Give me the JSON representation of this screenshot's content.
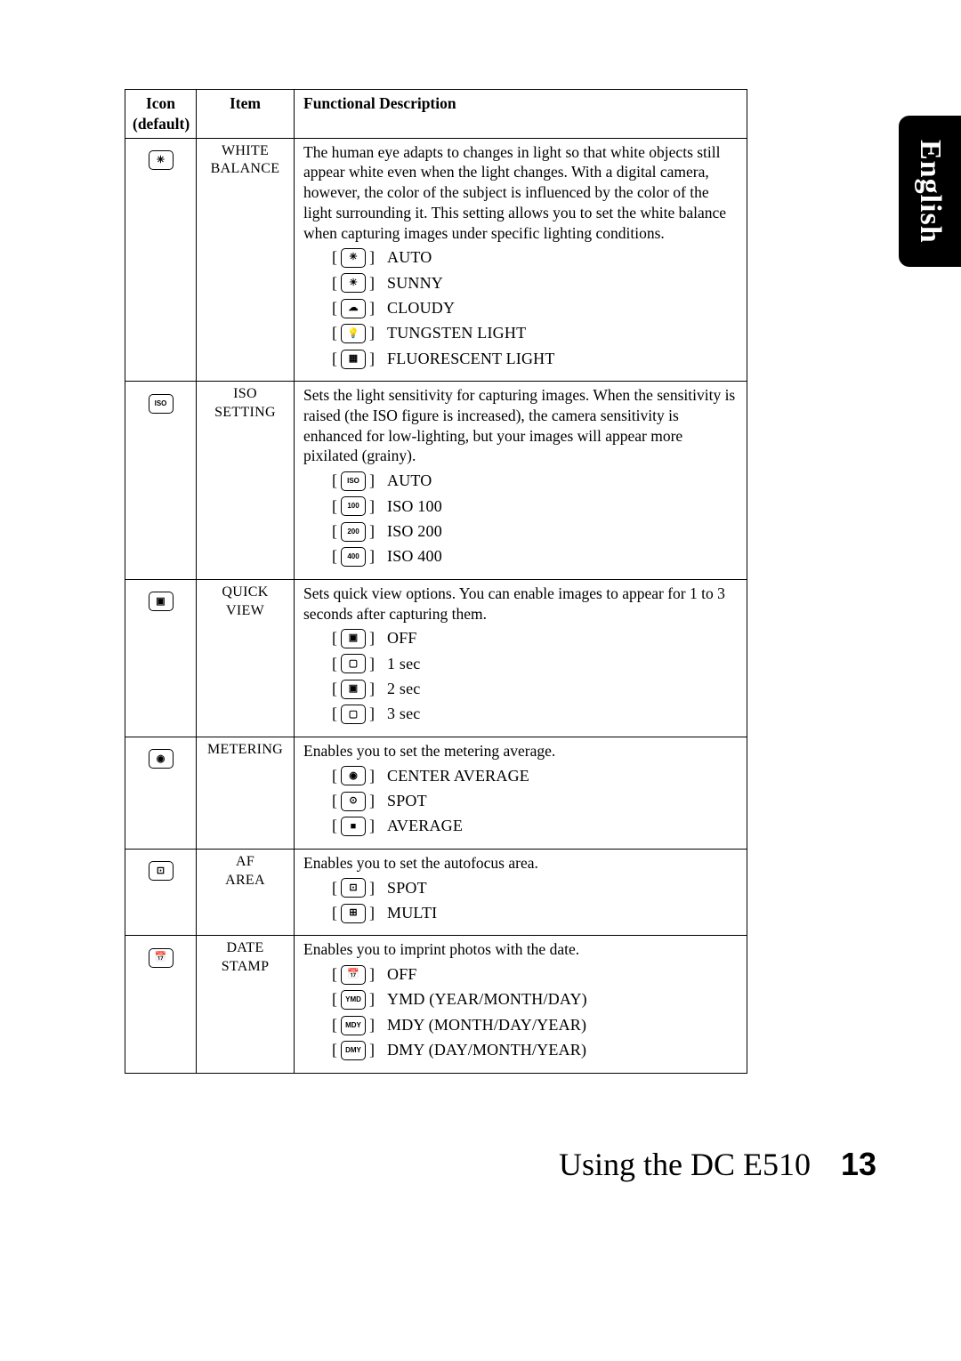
{
  "side_tab": {
    "label": "English"
  },
  "table": {
    "headers": {
      "icon": "Icon\n(default)",
      "item": "Item",
      "desc": "Functional Description"
    },
    "rows": [
      {
        "icon_glyph": "✳",
        "item": "WHITE BALANCE",
        "desc": "The human eye adapts to changes in light so that white objects still appear white even when the light changes. With a digital camera, however, the color of the subject is influenced by the color of the light surrounding it. This setting allows you to set the white balance when capturing images under specific lighting conditions.",
        "options": [
          {
            "glyph": "✳",
            "label": "AUTO"
          },
          {
            "glyph": "☀",
            "label": "SUNNY"
          },
          {
            "glyph": "☁",
            "label": "CLOUDY"
          },
          {
            "glyph": "💡",
            "label": "TUNGSTEN LIGHT"
          },
          {
            "glyph": "▦",
            "label": "FLUORESCENT LIGHT"
          }
        ]
      },
      {
        "icon_glyph": "ISO",
        "item": "ISO SETTING",
        "desc": "Sets the light sensitivity for capturing images. When the sensitivity is raised (the ISO figure is increased), the camera sensitivity is enhanced for low-lighting, but your images will appear more pixilated (grainy).",
        "options": [
          {
            "glyph": "ISO",
            "label": "AUTO"
          },
          {
            "glyph": "100",
            "label": "ISO 100"
          },
          {
            "glyph": "200",
            "label": "ISO 200"
          },
          {
            "glyph": "400",
            "label": "ISO 400"
          }
        ]
      },
      {
        "icon_glyph": "▣",
        "item": "QUICK VIEW",
        "desc": "Sets quick view options. You can enable images to appear for 1 to 3 seconds after capturing them.",
        "options": [
          {
            "glyph": "▣",
            "label": "OFF"
          },
          {
            "glyph": "▢",
            "label": "1 sec"
          },
          {
            "glyph": "▣",
            "label": "2 sec"
          },
          {
            "glyph": "▢",
            "label": "3 sec"
          }
        ]
      },
      {
        "icon_glyph": "◉",
        "item": "METERING",
        "desc": "Enables you to set the metering average.",
        "options": [
          {
            "glyph": "◉",
            "label": "CENTER AVERAGE"
          },
          {
            "glyph": "⊙",
            "label": "SPOT"
          },
          {
            "glyph": "■",
            "label": "AVERAGE"
          }
        ]
      },
      {
        "icon_glyph": "⊡",
        "item": "AF AREA",
        "desc": "Enables you to set the autofocus area.",
        "options": [
          {
            "glyph": "⊡",
            "label": "SPOT"
          },
          {
            "glyph": "⊞",
            "label": "MULTI"
          }
        ]
      },
      {
        "icon_glyph": "📅",
        "item": "DATE STAMP",
        "desc": "Enables you to imprint photos with the date.",
        "options": [
          {
            "glyph": "📅",
            "label": "OFF"
          },
          {
            "glyph": "YMD",
            "label": "YMD (YEAR/MONTH/DAY)"
          },
          {
            "glyph": "MDY",
            "label": "MDY (MONTH/DAY/YEAR)"
          },
          {
            "glyph": "DMY",
            "label": "DMY (DAY/MONTH/YEAR)"
          }
        ]
      }
    ]
  },
  "footer": {
    "title": "Using the DC E510",
    "page": "13"
  },
  "colors": {
    "bg": "#ffffff",
    "text": "#000000",
    "tab_bg": "#000000",
    "tab_text": "#ffffff",
    "border": "#000000"
  }
}
